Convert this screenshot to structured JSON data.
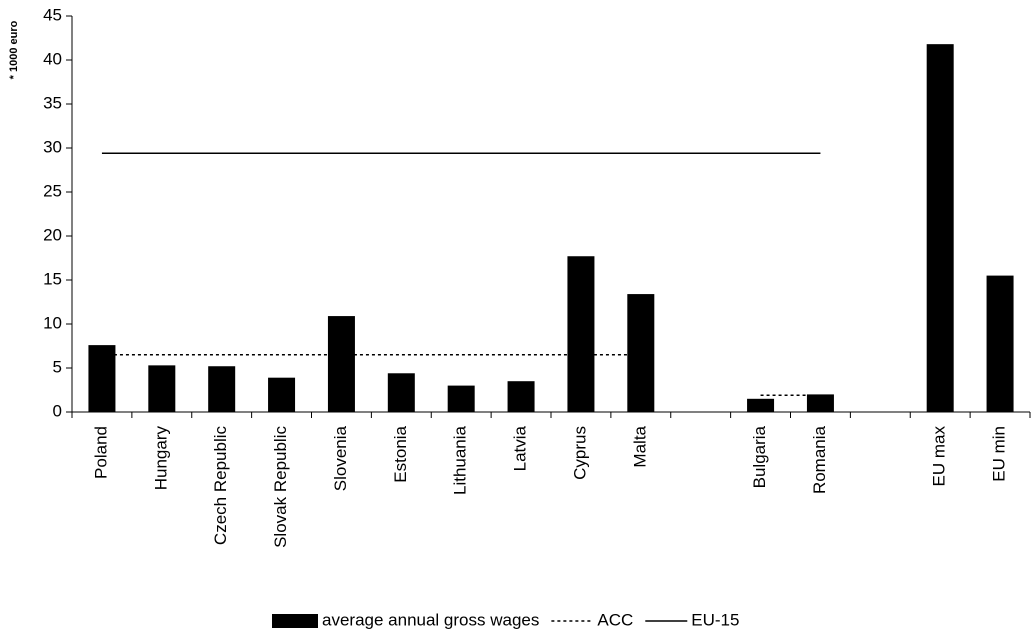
{
  "chart_data": {
    "type": "bar",
    "y_label": "* 1000 euro",
    "categories": [
      "Poland",
      "Hungary",
      "Czech Republic",
      "Slovak Republic",
      "Slovenia",
      "Estonia",
      "Lithuania",
      "Latvia",
      "Cyprus",
      "Malta",
      null,
      "Bulgaria",
      "Romania",
      null,
      "EU max",
      "EU min"
    ],
    "series": [
      {
        "name": "average annual gross wages",
        "type": "bar",
        "color": "#000000",
        "values": [
          7.6,
          5.3,
          5.2,
          3.9,
          10.9,
          4.4,
          3.0,
          3.5,
          17.7,
          13.4,
          null,
          1.5,
          2.0,
          null,
          41.8,
          15.5
        ]
      },
      {
        "name": "ACC",
        "type": "line",
        "dash": "dotted",
        "color": "#000000",
        "values": [
          6.5,
          6.5,
          6.5,
          6.5,
          6.5,
          6.5,
          6.5,
          6.5,
          6.5,
          6.5,
          null,
          1.9,
          1.9,
          null,
          null,
          null
        ]
      },
      {
        "name": "EU-15",
        "type": "line",
        "dash": "solid",
        "color": "#000000",
        "values": [
          29.4,
          29.4,
          29.4,
          29.4,
          29.4,
          29.4,
          29.4,
          29.4,
          29.4,
          29.4,
          29.4,
          29.4,
          29.4,
          null,
          null,
          null
        ]
      }
    ],
    "ylim": [
      0,
      45
    ],
    "yticks": [
      0,
      5,
      10,
      15,
      20,
      25,
      30,
      35,
      40,
      45
    ],
    "grid": false,
    "legend": "bottom"
  }
}
